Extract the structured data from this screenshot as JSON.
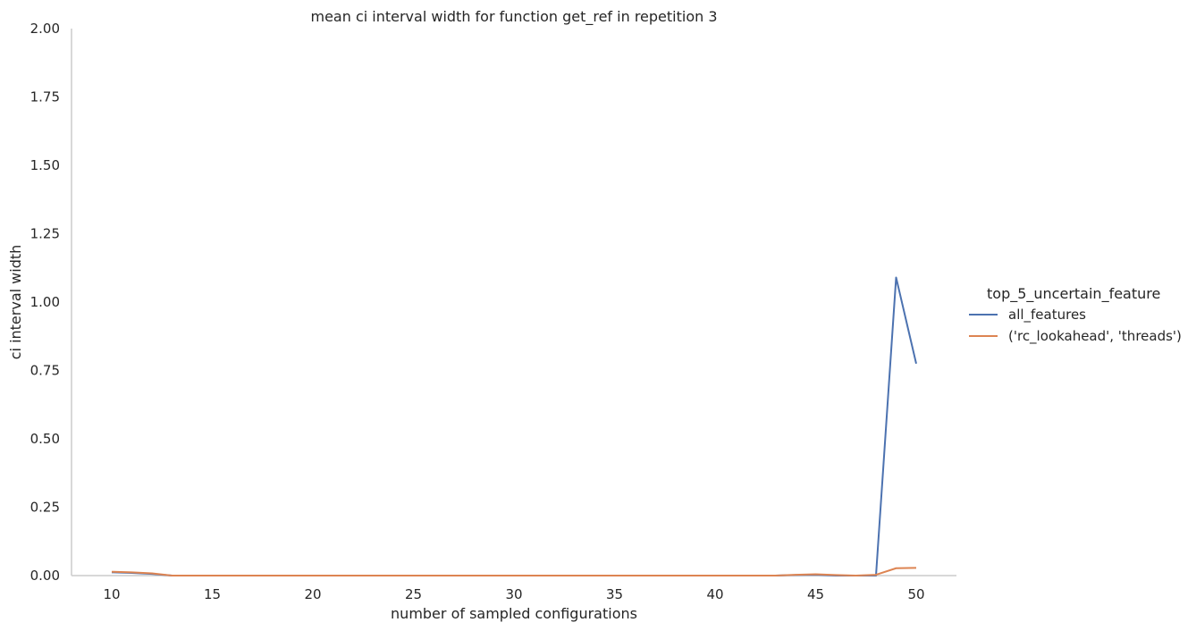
{
  "chart_data": {
    "type": "line",
    "title": "mean ci interval width for function get_ref in repetition 3",
    "xlabel": "number of sampled configurations",
    "ylabel": "ci interval width",
    "xlim": [
      8,
      52
    ],
    "ylim": [
      0,
      2
    ],
    "xticks": [
      10,
      15,
      20,
      25,
      30,
      35,
      40,
      45,
      50
    ],
    "yticks": [
      0.0,
      0.25,
      0.5,
      0.75,
      1.0,
      1.25,
      1.5,
      1.75,
      2.0
    ],
    "ytick_labels": [
      "0.00",
      "0.25",
      "0.50",
      "0.75",
      "1.00",
      "1.25",
      "1.50",
      "1.75",
      "2.00"
    ],
    "grid": false,
    "legend": {
      "title": "top_5_uncertain_feature",
      "placement": "right"
    },
    "x": [
      10,
      11,
      12,
      13,
      14,
      15,
      16,
      17,
      18,
      19,
      20,
      21,
      22,
      23,
      24,
      25,
      26,
      27,
      28,
      29,
      30,
      31,
      32,
      33,
      34,
      35,
      36,
      37,
      38,
      39,
      40,
      41,
      42,
      43,
      44,
      45,
      46,
      47,
      48,
      49,
      50
    ],
    "series": [
      {
        "name": "all_features",
        "color": "#4c72b0",
        "values": [
          0.012,
          0.01,
          0.006,
          0,
          0,
          0,
          0,
          0,
          0,
          0,
          0,
          0,
          0,
          0,
          0,
          0,
          0,
          0,
          0,
          0,
          0,
          0,
          0,
          0,
          0,
          0,
          0,
          0,
          0,
          0,
          0,
          0,
          0,
          0,
          0.002,
          0.003,
          0,
          0,
          0,
          1.09,
          0.775
        ]
      },
      {
        "name": "('rc_lookahead', 'threads')",
        "color": "#dd8452",
        "values": [
          0.014,
          0.012,
          0.008,
          0,
          0,
          0,
          0,
          0,
          0,
          0,
          0,
          0,
          0,
          0,
          0,
          0,
          0,
          0,
          0,
          0,
          0,
          0,
          0,
          0,
          0,
          0,
          0,
          0,
          0,
          0,
          0,
          0,
          0,
          0,
          0.003,
          0.005,
          0.002,
          0,
          0.003,
          0.027,
          0.028
        ]
      }
    ]
  }
}
